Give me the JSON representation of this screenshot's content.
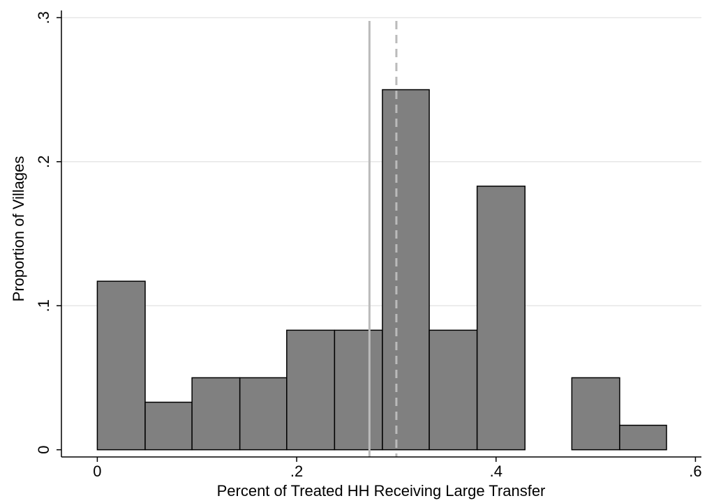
{
  "chart_data": {
    "type": "histogram",
    "x_label": "Percent of Treated HH Receiving Large Transfer",
    "y_label": "Proportion of Villages",
    "bins": [
      0,
      0.048,
      0.095,
      0.143,
      0.19,
      0.238,
      0.286,
      0.333,
      0.381,
      0.429,
      0.476,
      0.524,
      0.571
    ],
    "values": [
      0.117,
      0.033,
      0.05,
      0.05,
      0.083,
      0.083,
      0.25,
      0.083,
      0.183,
      0,
      0.05,
      0.017
    ],
    "color": "#808080",
    "xlim": [
      -0.036,
      0.606
    ],
    "ylim": [
      -0.005,
      0.305
    ],
    "xticks": [
      0,
      {
        "value": 0.2,
        "label": ".2"
      },
      {
        "value": 0.4,
        "label": ".4"
      },
      {
        "value": 0.6,
        "label": ".6"
      }
    ],
    "yticks": [
      0,
      {
        "value": 0.1,
        "label": ".1"
      },
      {
        "value": 0.2,
        "label": ".2"
      },
      {
        "value": 0.3,
        "label": ".3"
      }
    ],
    "grid": true,
    "reference_lines": [
      {
        "value": 0.273,
        "style": "solid",
        "color": "#bbbbbb"
      },
      {
        "value": 0.3,
        "style": "dashed",
        "color": "#bbbbbb"
      }
    ]
  }
}
